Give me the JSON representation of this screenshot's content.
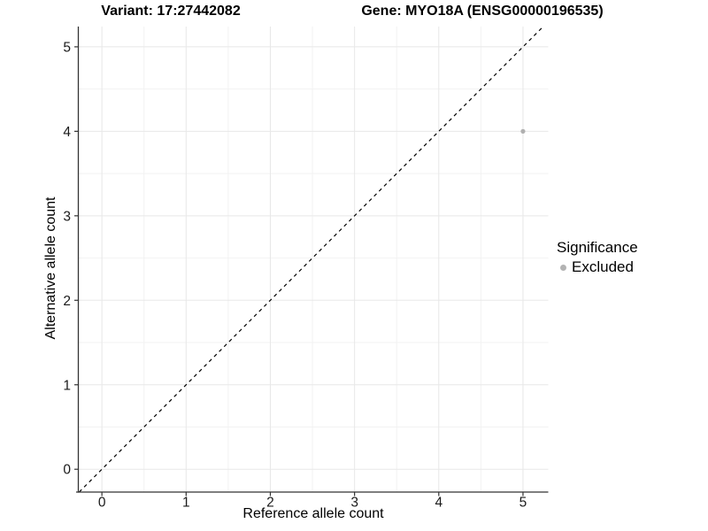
{
  "chart_data": {
    "type": "scatter",
    "titles": {
      "left": "Variant: 17:27442082",
      "right": "Gene: MYO18A (ENSG00000196535)"
    },
    "xlabel": "Reference allele count",
    "ylabel": "Alternative allele count",
    "x_ticks": [
      0,
      1,
      2,
      3,
      4,
      5
    ],
    "y_ticks": [
      0,
      1,
      2,
      3,
      4,
      5
    ],
    "xlim": [
      -0.28,
      5.3
    ],
    "ylim": [
      -0.27,
      5.24
    ],
    "grid": {
      "major": true,
      "minor": true
    },
    "points": [
      {
        "x": 5,
        "y": 4,
        "series": "Excluded"
      }
    ],
    "identity_line": {
      "style": "dashed",
      "color": "#000000"
    },
    "legend": {
      "title": "Significance",
      "position": "right",
      "items": [
        {
          "label": "Excluded",
          "color": "#b3b3b3",
          "marker": "circle"
        }
      ]
    },
    "colors": {
      "point": "#b0b0b0",
      "grid_major": "#e8e8e8",
      "grid_minor": "#f2f2f2",
      "axis": "#333333",
      "tick_text": "#1a1a1a",
      "background": "#ffffff"
    }
  }
}
